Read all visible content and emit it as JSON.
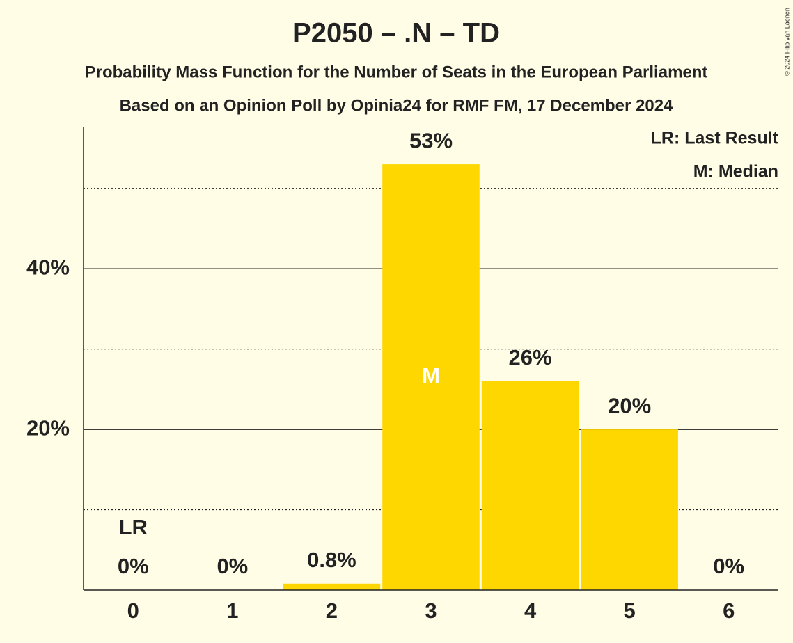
{
  "chart_data": {
    "type": "bar",
    "title": "P2050 – .N – TD",
    "subtitle": "Probability Mass Function for the Number of Seats in the European Parliament",
    "subtitle2": "Based on an Opinion Poll by Opinia24 for RMF FM, 17 December 2024",
    "categories": [
      "0",
      "1",
      "2",
      "3",
      "4",
      "5",
      "6"
    ],
    "values": [
      0,
      0,
      0.8,
      53,
      26,
      20,
      0
    ],
    "value_labels": [
      "0%",
      "0%",
      "0.8%",
      "53%",
      "26%",
      "20%",
      "0%"
    ],
    "color": "#ffd700",
    "ylim": [
      0,
      57.6
    ],
    "yticks": [
      {
        "value": 20,
        "label": "20%"
      },
      {
        "value": 40,
        "label": "40%"
      }
    ],
    "minor_gridlines": [
      10,
      30,
      50
    ],
    "grid": true,
    "last_result": {
      "label": "LR",
      "seats": 0
    },
    "median": {
      "label": "M",
      "seats": 3
    },
    "legend": [
      "LR: Last Result",
      "M: Median"
    ],
    "legend_position": "upper right",
    "credit": "© 2024 Filip van Laenen"
  }
}
